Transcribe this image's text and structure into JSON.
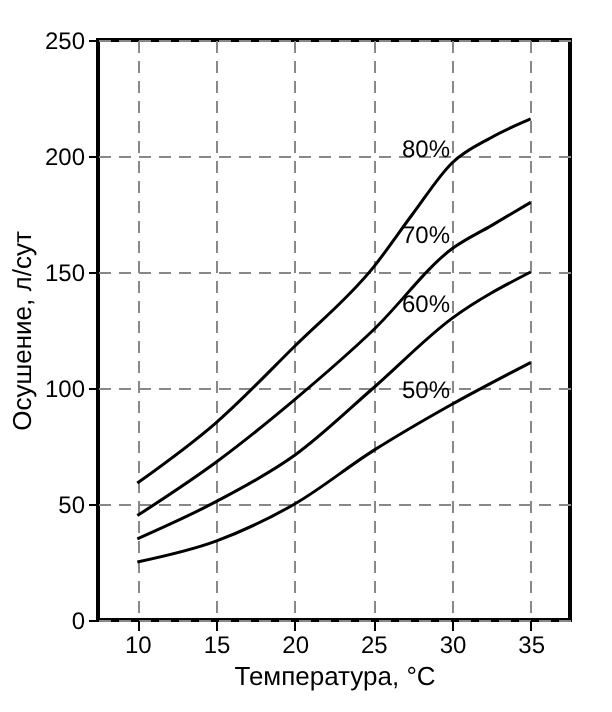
{
  "chart_data": {
    "type": "line",
    "xlabel": "Температура, °C",
    "ylabel": "Осушение, л/сут",
    "xlim": [
      7.5,
      37.5
    ],
    "xticks": [
      10,
      15,
      20,
      25,
      30,
      35
    ],
    "ylim": [
      0,
      250
    ],
    "yticks": [
      0,
      50,
      100,
      150,
      200,
      250
    ],
    "grid": true,
    "line_style": "solid",
    "marker": "none",
    "series": [
      {
        "name": "80%",
        "color": "#000000",
        "x": [
          10,
          15,
          20,
          25,
          27.5,
          30,
          32.5,
          35
        ],
        "values": [
          59,
          85,
          118,
          152,
          175,
          197,
          208,
          216
        ]
      },
      {
        "name": "70%",
        "color": "#000000",
        "x": [
          10,
          15,
          20,
          25,
          30,
          32.5,
          35
        ],
        "values": [
          45,
          68,
          95,
          125,
          160,
          170,
          180
        ]
      },
      {
        "name": "60%",
        "color": "#000000",
        "x": [
          10,
          15,
          20,
          25,
          30,
          35
        ],
        "values": [
          35,
          51,
          71,
          100,
          130,
          150
        ]
      },
      {
        "name": "50%",
        "color": "#000000",
        "x": [
          10,
          15,
          20,
          25,
          30,
          35
        ],
        "values": [
          25,
          34,
          50,
          73,
          93,
          111
        ]
      }
    ]
  }
}
